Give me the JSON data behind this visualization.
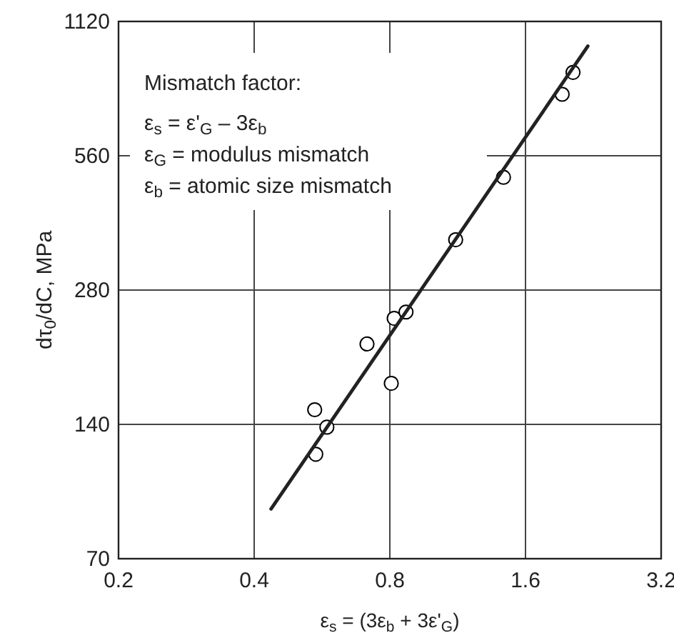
{
  "chart_data": {
    "type": "scatter",
    "xlabel": "ε$_{s}$ = (3ε$_{b}$ + 3ε'$_{G}$)",
    "ylabel": "dτ$_{0}$/dC, MPa",
    "annotations": [
      "Mismatch factor:",
      "ε$_{s}$ = ε'$_{G}$ – 3ε$_{b}$",
      "ε$_{G}$ = modulus mismatch",
      "ε$_{b}$ = atomic size mismatch"
    ],
    "series": [
      {
        "color": "#000000",
        "marker": "circle",
        "x": [
          0.545,
          0.58,
          0.548,
          0.712,
          0.806,
          0.818,
          0.869,
          1.12,
          1.43,
          1.93,
          2.04
        ],
        "values": [
          151,
          138,
          120,
          212,
          173,
          242,
          250,
          363,
          501,
          769,
          861
        ]
      },
      {
        "type": "line",
        "color": "#222222",
        "marker": "none",
        "line_style": "solid",
        "x": [
          0.436,
          2.2
        ],
        "values": [
          90.5,
          986
        ]
      }
    ],
    "xlim": [
      0.2,
      3.2
    ],
    "ylim": [
      70,
      1120
    ],
    "xticks": [
      0.2,
      0.4,
      0.8,
      1.6,
      3.2
    ],
    "yticks": [
      70,
      140,
      280,
      560,
      1120
    ],
    "log": "xy",
    "grid": true,
    "legend": false
  }
}
